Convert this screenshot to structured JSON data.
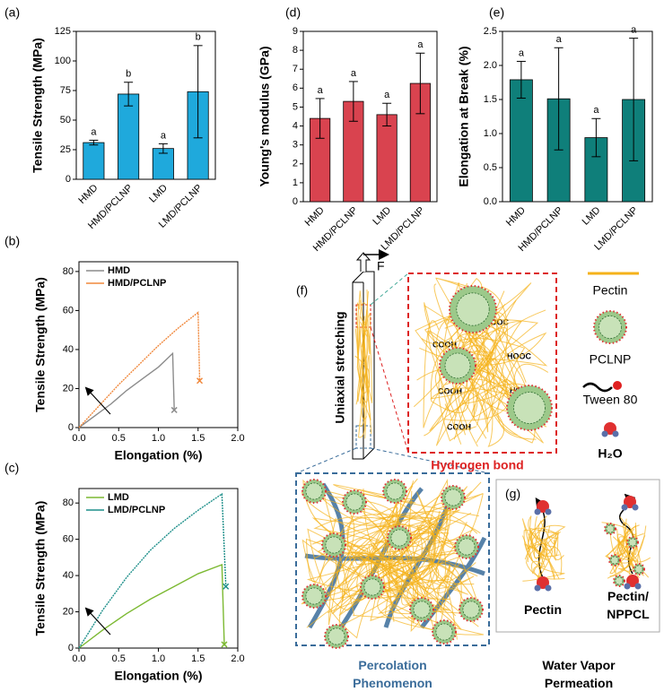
{
  "chart_data": [
    {
      "type": "bar",
      "panel": "(a)",
      "ylabel": "Tensile Strength (MPa)",
      "categories": [
        "HMD",
        "HMD/PCLNP",
        "LMD",
        "LMD/PCLNP"
      ],
      "values": [
        31,
        72,
        26,
        74
      ],
      "errors": [
        2,
        10,
        4,
        39
      ],
      "letters": [
        "a",
        "b",
        "a",
        "b"
      ],
      "color": "#1fa9dc",
      "ylim": [
        0,
        125
      ],
      "yticks": [
        0,
        25,
        50,
        75,
        100,
        125
      ]
    },
    {
      "type": "bar",
      "panel": "(d)",
      "ylabel": "Young's modulus (GPa)",
      "categories": [
        "HMD",
        "HMD/PCLNP",
        "LMD",
        "LMD/PCLNP"
      ],
      "values": [
        4.4,
        5.3,
        4.6,
        6.25
      ],
      "errors": [
        1.05,
        1.05,
        0.6,
        1.6
      ],
      "letters": [
        "a",
        "a",
        "a",
        "a"
      ],
      "color": "#d9434f",
      "ylim": [
        0,
        9
      ],
      "yticks": [
        0,
        1,
        2,
        3,
        4,
        5,
        6,
        7,
        8,
        9
      ]
    },
    {
      "type": "bar",
      "panel": "(e)",
      "ylabel": "Elongation at Break (%)",
      "categories": [
        "HMD",
        "HMD/PCLNP",
        "LMD",
        "LMD/PCLNP"
      ],
      "values": [
        1.79,
        1.51,
        0.94,
        1.5
      ],
      "errors": [
        0.27,
        0.75,
        0.28,
        0.9
      ],
      "letters": [
        "a",
        "a",
        "a",
        "a"
      ],
      "color": "#0f7f7a",
      "ylim": [
        0,
        2.5
      ],
      "yticks": [
        {
          "value": 0,
          "label": "0.0"
        },
        0.5,
        {
          "value": 1,
          "label": "1.0"
        },
        1.5,
        {
          "value": 2,
          "label": "2.0"
        },
        2.5
      ]
    },
    {
      "type": "line",
      "panel": "(b)",
      "xlabel": "Elongation (%)",
      "ylabel": "Tensile Strength (MPa)",
      "xlim": [
        0,
        2
      ],
      "xticks": [
        {
          "value": 0,
          "label": "0.0"
        },
        0.5,
        {
          "value": 1,
          "label": "1.0"
        },
        1.5,
        {
          "value": 2,
          "label": "2.0"
        }
      ],
      "ylim": [
        0,
        85
      ],
      "yticks": [
        0,
        20,
        40,
        60,
        80
      ],
      "series": [
        {
          "name": "HMD",
          "color": "#8c8c8c",
          "x": [
            0,
            0.2,
            0.4,
            0.6,
            0.8,
            1.0,
            1.18,
            1.2
          ],
          "values": [
            0,
            6,
            12,
            19,
            25,
            31,
            38,
            9
          ]
        },
        {
          "name": "HMD/PCLNP",
          "color": "#f0883c",
          "x": [
            0,
            0.25,
            0.5,
            0.75,
            1.0,
            1.25,
            1.5,
            1.52
          ],
          "values": [
            0,
            11,
            22,
            32,
            42,
            51,
            59,
            24
          ]
        }
      ]
    },
    {
      "type": "line",
      "panel": "(c)",
      "xlabel": "Elongation (%)",
      "ylabel": "Tensile Strength (MPa)",
      "xlim": [
        0,
        2
      ],
      "xticks": [
        {
          "value": 0,
          "label": "0.0"
        },
        0.5,
        {
          "value": 1,
          "label": "1.0"
        },
        1.5,
        {
          "value": 2,
          "label": "2.0"
        }
      ],
      "ylim": [
        0,
        88
      ],
      "yticks": [
        0,
        20,
        40,
        60,
        80
      ],
      "series": [
        {
          "name": "LMD",
          "color": "#7cb932",
          "x": [
            0,
            0.3,
            0.6,
            0.9,
            1.2,
            1.5,
            1.8,
            1.83
          ],
          "values": [
            0,
            10,
            19,
            27,
            34,
            41,
            46,
            2
          ]
        },
        {
          "name": "LMD/PCLNP",
          "color": "#1d8f8a",
          "x": [
            0,
            0.3,
            0.6,
            0.9,
            1.2,
            1.5,
            1.8,
            1.85
          ],
          "values": [
            0,
            21,
            39,
            54,
            66,
            76,
            85,
            34
          ]
        }
      ]
    }
  ],
  "diagram": {
    "f_panel": "(f)",
    "force": "F",
    "stretching": "Uniaxial stretching",
    "groups": [
      "HOOC",
      "HOOC",
      "COOH",
      "COOH",
      "HOOC",
      "COOH"
    ],
    "hbond": "Hydrogen bond",
    "legend": [
      "Pectin",
      "PCLNP",
      "Tween 80",
      "H₂O"
    ],
    "percolation": "Percolation Phenomenon",
    "g_panel": "(g)",
    "pectin": "Pectin",
    "pectin_np": "Pectin/ NPPCL",
    "wvp": "Water Vapor Permeation"
  }
}
